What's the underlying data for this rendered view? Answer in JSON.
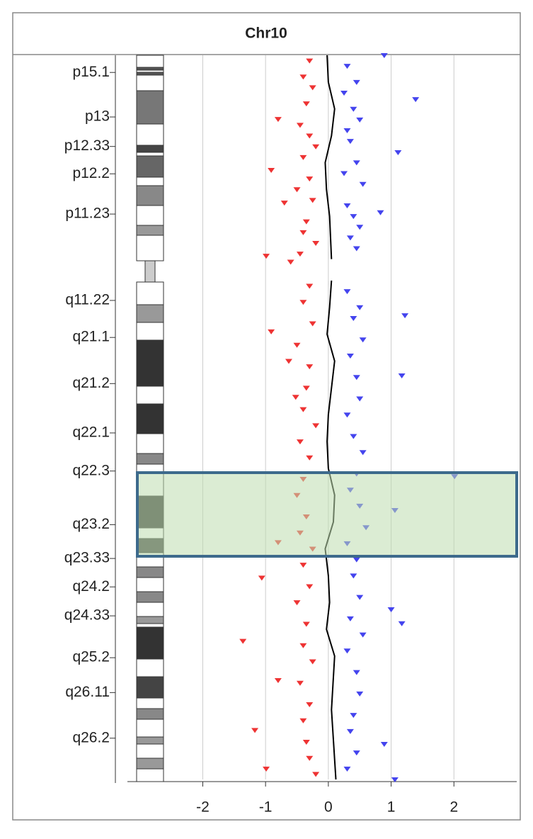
{
  "chart_data": {
    "type": "scatter",
    "title": "Chr10",
    "xlim": [
      -3.2,
      3.0
    ],
    "xticks": [
      -2,
      -1,
      0,
      1,
      2
    ],
    "grid": true,
    "ylim": [
      0,
      135
    ],
    "y_inverted": true,
    "yticks": [
      {
        "value": 3.2,
        "label": "p15.1"
      },
      {
        "value": 11.5,
        "label": "p13"
      },
      {
        "value": 17.0,
        "label": "p12.33"
      },
      {
        "value": 22.1,
        "label": "p12.2"
      },
      {
        "value": 29.6,
        "label": "p11.23"
      },
      {
        "value": 45.7,
        "label": "q11.22"
      },
      {
        "value": 52.6,
        "label": "q21.1"
      },
      {
        "value": 61.2,
        "label": "q21.2"
      },
      {
        "value": 70.4,
        "label": "q22.1"
      },
      {
        "value": 77.5,
        "label": "q22.3"
      },
      {
        "value": 87.5,
        "label": "q23.2"
      },
      {
        "value": 93.8,
        "label": "q23.33"
      },
      {
        "value": 99.1,
        "label": "q24.2"
      },
      {
        "value": 104.5,
        "label": "q24.33"
      },
      {
        "value": 112.3,
        "label": "q25.2"
      },
      {
        "value": 118.8,
        "label": "q26.11"
      },
      {
        "value": 127.3,
        "label": "q26.2"
      }
    ],
    "series": [
      {
        "color": "#ee3333",
        "x": [
          -0.3,
          -0.4,
          -0.25,
          -0.35,
          -0.45,
          -0.3,
          -0.2,
          -0.4,
          -0.3,
          -0.5,
          -0.25,
          -0.35,
          -0.4,
          -0.2,
          -0.45,
          -0.3,
          -0.4,
          -0.25,
          -0.5,
          -0.3,
          -0.35,
          -0.4,
          -0.2,
          -0.45,
          -0.3,
          -0.4,
          -0.5,
          -0.35,
          -0.45,
          -0.25,
          -0.4,
          -0.3,
          -0.5,
          -0.35,
          -0.4,
          -0.25,
          -0.45,
          -0.3,
          -0.4,
          -0.35,
          -0.3,
          -0.2,
          -0.8,
          -0.91,
          -0.7,
          -0.99,
          -0.6,
          -0.91,
          -0.63,
          -0.52,
          -0.8,
          -1.06,
          -1.36,
          -0.8,
          -1.17,
          -0.99
        ],
        "y": [
          1,
          4,
          6,
          9,
          13,
          15,
          17,
          19,
          23,
          25,
          27,
          31,
          33,
          35,
          37,
          43,
          46,
          50,
          54,
          58,
          62,
          66,
          69,
          72,
          75,
          79,
          82,
          86,
          89,
          92,
          95,
          99,
          102,
          106,
          110,
          113,
          117,
          121,
          124,
          128,
          131,
          134,
          11.9,
          21.4,
          27.5,
          37.4,
          38.5,
          51.5,
          57,
          63.7,
          90.8,
          97.4,
          109.2,
          116.5,
          125.8,
          133
        ]
      },
      {
        "color": "#4444ee",
        "x": [
          0.3,
          0.45,
          0.25,
          0.4,
          0.5,
          0.3,
          0.35,
          0.45,
          0.25,
          0.55,
          0.3,
          0.4,
          0.5,
          0.35,
          0.45,
          0.3,
          0.5,
          0.4,
          0.55,
          0.35,
          0.45,
          0.5,
          0.3,
          0.4,
          0.55,
          0.45,
          0.35,
          0.5,
          0.6,
          0.3,
          0.45,
          0.4,
          0.5,
          0.35,
          0.55,
          0.3,
          0.45,
          0.5,
          0.4,
          0.35,
          0.45,
          0.3,
          0.89,
          1.39,
          1.11,
          0.83,
          1.22,
          1.17,
          2.01,
          1.06,
          1.0,
          1.17,
          0.89,
          1.06
        ],
        "y": [
          2,
          5,
          7,
          10,
          12,
          14,
          16,
          20,
          22,
          24,
          28,
          30,
          32,
          34,
          36,
          44,
          47,
          49,
          53,
          56,
          60,
          64,
          67,
          71,
          74,
          78,
          81,
          84,
          88,
          91,
          94,
          97,
          101,
          105,
          108,
          111,
          115,
          119,
          123,
          126,
          130,
          133,
          0,
          8.2,
          18.1,
          29.3,
          48.5,
          59.7,
          78.5,
          84.8,
          103.3,
          105.9,
          128.4,
          135
        ]
      },
      {
        "type": "line",
        "color": "#000000",
        "x": [
          -0.02,
          0.0,
          0.1,
          0.05,
          -0.05,
          -0.03,
          0.02,
          0.05,
          null,
          0.05,
          0.02,
          -0.02,
          0.1,
          0.05,
          0.0,
          -0.02,
          0.0,
          0.1,
          0.08,
          -0.05,
          0.0,
          0.02,
          -0.03,
          0.1,
          0.05,
          0.12
        ],
        "y": [
          0,
          5,
          10,
          15,
          20,
          25,
          30,
          38,
          null,
          42,
          47,
          52,
          57,
          62,
          67,
          72,
          77,
          82,
          87,
          92,
          97,
          102,
          107,
          112,
          122,
          135
        ]
      }
    ]
  }
}
